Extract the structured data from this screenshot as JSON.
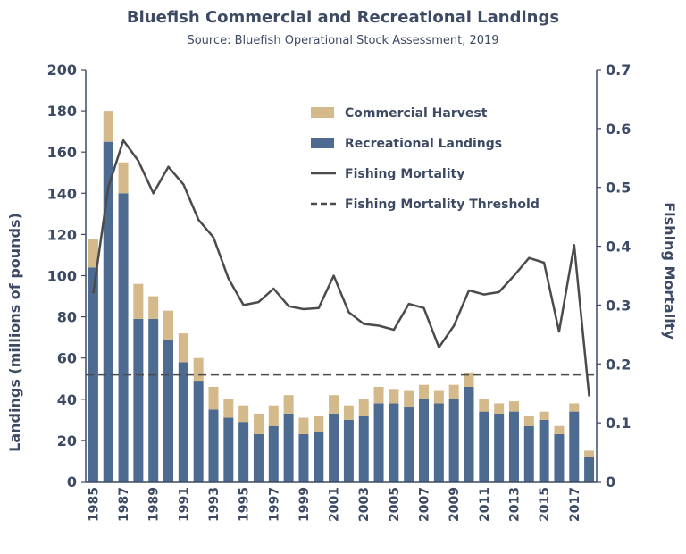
{
  "chart_data": {
    "type": "bar",
    "title": "Bluefish Commercial and Recreational Landings",
    "subtitle": "Source: Bluefish Operational Stock Assessment, 2019",
    "ylabel": "Landings (millions of pounds)",
    "y2label": "Fishing Mortality",
    "ylim": [
      0,
      200
    ],
    "y2lim": [
      0,
      0.7
    ],
    "yticks": [
      "0",
      "20",
      "40",
      "60",
      "80",
      "100",
      "120",
      "140",
      "160",
      "180",
      "200"
    ],
    "y2ticks": [
      "0",
      "0.1",
      "0.2",
      "0.3",
      "0.4",
      "0.5",
      "0.6",
      "0.7"
    ],
    "xtick_labels": [
      "1985",
      "1987",
      "1989",
      "1991",
      "1993",
      "1995",
      "1997",
      "1999",
      "2001",
      "2003",
      "2005",
      "2007",
      "2009",
      "2011",
      "2013",
      "2015",
      "2017"
    ],
    "categories": [
      1985,
      1986,
      1987,
      1988,
      1989,
      1990,
      1991,
      1992,
      1993,
      1994,
      1995,
      1996,
      1997,
      1998,
      1999,
      2000,
      2001,
      2002,
      2003,
      2004,
      2005,
      2006,
      2007,
      2008,
      2009,
      2010,
      2011,
      2012,
      2013,
      2014,
      2015,
      2016,
      2017,
      2018
    ],
    "series": [
      {
        "name": "Recreational Landings",
        "kind": "stacked-bar",
        "color": "#4d6b91",
        "values": [
          104,
          165,
          140,
          79,
          79,
          69,
          58,
          49,
          35,
          31,
          29,
          23,
          27,
          33,
          23,
          24,
          33,
          30,
          32,
          38,
          38,
          36,
          40,
          38,
          40,
          46,
          34,
          33,
          34,
          27,
          30,
          23,
          34,
          12
        ]
      },
      {
        "name": "Commercial Harvest",
        "kind": "stacked-bar",
        "color": "#d4b98a",
        "values": [
          14,
          15,
          15,
          17,
          11,
          14,
          14,
          11,
          11,
          9,
          8,
          10,
          10,
          9,
          8,
          8,
          9,
          7,
          8,
          8,
          7,
          8,
          7,
          6,
          7,
          7,
          6,
          5,
          5,
          5,
          4,
          4,
          4,
          3
        ]
      },
      {
        "name": "Fishing Mortality",
        "kind": "line",
        "axis": "right",
        "color": "#4b4b4b",
        "values": [
          0.32,
          0.5,
          0.58,
          0.545,
          0.49,
          0.535,
          0.505,
          0.445,
          0.415,
          0.345,
          0.3,
          0.305,
          0.328,
          0.298,
          0.293,
          0.295,
          0.35,
          0.288,
          0.268,
          0.265,
          0.258,
          0.302,
          0.295,
          0.228,
          0.265,
          0.325,
          0.318,
          0.322,
          0.35,
          0.38,
          0.372,
          0.255,
          0.402,
          0.145
        ]
      },
      {
        "name": "Fishing Mortality Threshold",
        "kind": "dashed-line",
        "axis": "right",
        "color": "#4b4b4b",
        "value": 0.182
      }
    ],
    "legend": [
      "Commercial Harvest",
      "Recreational Landings",
      "Fishing Mortality",
      "Fishing Mortality Threshold"
    ],
    "legend_position": "top-right",
    "grid": false
  }
}
